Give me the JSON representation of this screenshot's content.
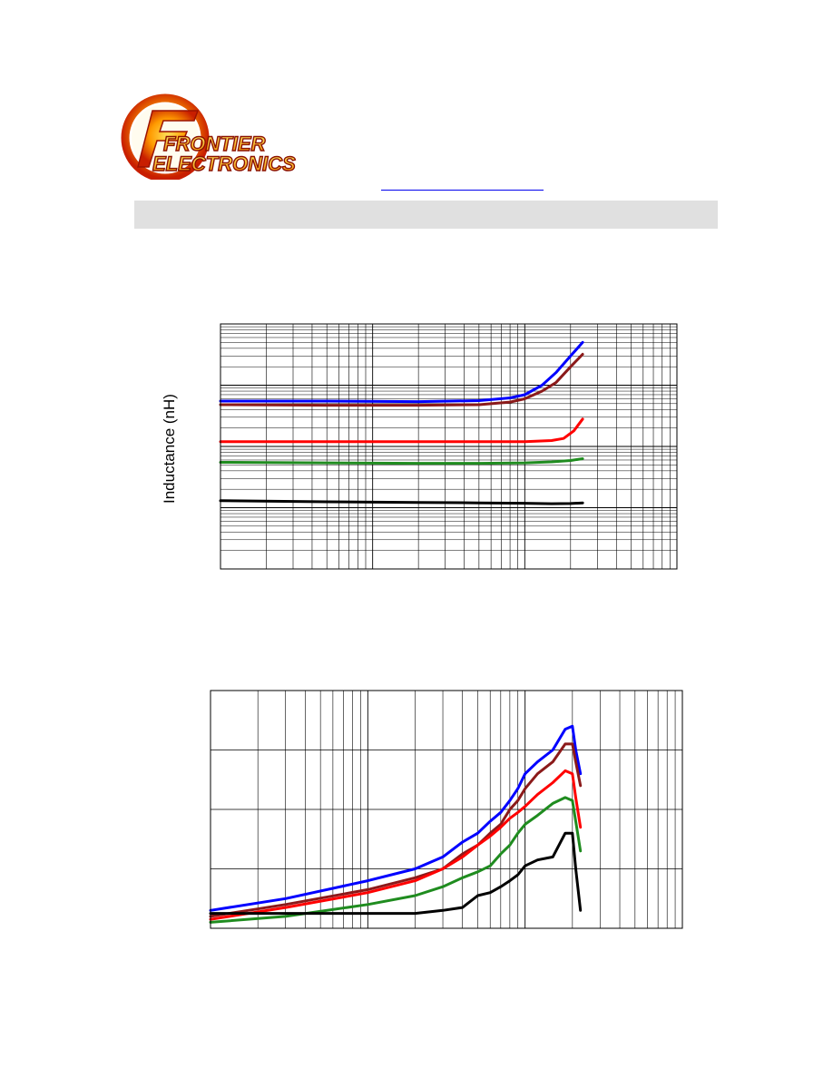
{
  "logo": {
    "line1": "FRONTIER",
    "line2": "ELECTRONICS"
  },
  "chart_data": [
    {
      "type": "line",
      "xscale": "log",
      "yscale": "log",
      "grid": true,
      "xlim": [
        1,
        1000
      ],
      "ylim": [
        0.1,
        1000
      ],
      "xlabel": "",
      "ylabel": "Inductance (nH)",
      "series": [
        {
          "color": "#0000ff",
          "x": [
            1,
            5,
            20,
            50,
            80,
            100,
            130,
            160,
            200,
            240
          ],
          "y": [
            55,
            55,
            54,
            56,
            62,
            70,
            100,
            160,
            300,
            500
          ]
        },
        {
          "color": "#8b1a1a",
          "x": [
            1,
            5,
            20,
            50,
            80,
            100,
            130,
            160,
            200,
            240
          ],
          "y": [
            48,
            47,
            47,
            48,
            53,
            60,
            80,
            110,
            200,
            320
          ]
        },
        {
          "color": "#ff0000",
          "x": [
            1,
            5,
            20,
            50,
            100,
            150,
            180,
            210,
            240
          ],
          "y": [
            12,
            12,
            12,
            12,
            12,
            12.5,
            13.5,
            18,
            28
          ]
        },
        {
          "color": "#1f8c1f",
          "x": [
            1,
            5,
            20,
            50,
            100,
            150,
            200,
            240
          ],
          "y": [
            5.5,
            5.4,
            5.3,
            5.3,
            5.4,
            5.6,
            5.9,
            6.3
          ]
        },
        {
          "color": "#000000",
          "x": [
            1,
            5,
            20,
            50,
            100,
            150,
            200,
            240
          ],
          "y": [
            1.3,
            1.25,
            1.22,
            1.2,
            1.18,
            1.16,
            1.17,
            1.2
          ]
        }
      ]
    },
    {
      "type": "line",
      "xscale": "log",
      "yscale": "linear",
      "grid": true,
      "xlim": [
        1,
        1000
      ],
      "ylim": [
        0,
        80
      ],
      "xlabel": "",
      "ylabel": "",
      "series": [
        {
          "color": "#0000ff",
          "x": [
            1,
            3,
            10,
            20,
            30,
            40,
            50,
            60,
            70,
            80,
            90,
            100,
            120,
            150,
            180,
            200,
            210,
            225
          ],
          "y": [
            6,
            10,
            16,
            20,
            24,
            29,
            32,
            36,
            39,
            43,
            47,
            52,
            56,
            60,
            67,
            68,
            60,
            52
          ]
        },
        {
          "color": "#8b1a1a",
          "x": [
            1,
            3,
            10,
            20,
            30,
            40,
            50,
            60,
            70,
            80,
            90,
            100,
            120,
            150,
            180,
            200,
            210,
            225
          ],
          "y": [
            4,
            8,
            13,
            17,
            20,
            25,
            28,
            32,
            35,
            40,
            43,
            47,
            52,
            56,
            62,
            62,
            56,
            48
          ]
        },
        {
          "color": "#ff0000",
          "x": [
            1,
            3,
            10,
            20,
            30,
            40,
            50,
            60,
            70,
            80,
            90,
            100,
            120,
            150,
            180,
            200,
            210,
            225
          ],
          "y": [
            3,
            7,
            12,
            16,
            20,
            24,
            28,
            31,
            34,
            37,
            39,
            41,
            45,
            49,
            53,
            52,
            44,
            34
          ]
        },
        {
          "color": "#1f8c1f",
          "x": [
            1,
            3,
            10,
            20,
            30,
            40,
            50,
            60,
            70,
            80,
            90,
            100,
            120,
            150,
            180,
            200,
            210,
            225
          ],
          "y": [
            2,
            4,
            8,
            11,
            14,
            17,
            19,
            21,
            25,
            28,
            32,
            35,
            38,
            42,
            44,
            43,
            36,
            26
          ]
        },
        {
          "color": "#000000",
          "x": [
            1,
            3,
            10,
            20,
            30,
            40,
            50,
            60,
            70,
            80,
            90,
            100,
            120,
            150,
            180,
            200,
            210,
            225
          ],
          "y": [
            5,
            5,
            5,
            5,
            6,
            7,
            11,
            12,
            14,
            16,
            18,
            21,
            23,
            24,
            32,
            32,
            20,
            6
          ]
        }
      ]
    }
  ]
}
